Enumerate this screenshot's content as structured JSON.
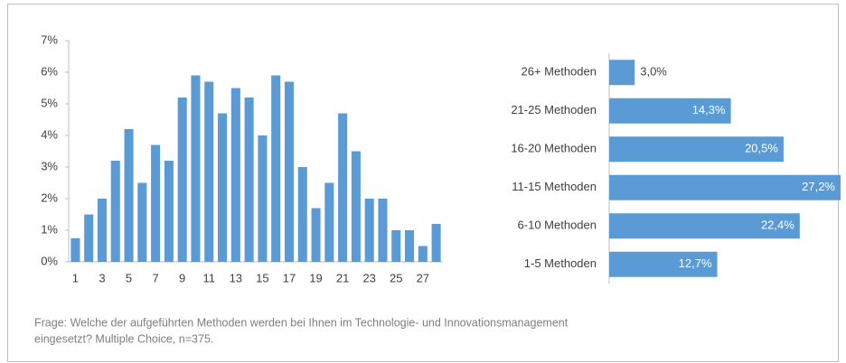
{
  "chart_data": [
    {
      "type": "bar",
      "categories": [
        "1",
        null,
        "3",
        null,
        "5",
        null,
        "7",
        null,
        "9",
        null,
        "11",
        null,
        "13",
        null,
        "15",
        null,
        "17",
        null,
        "19",
        null,
        "21",
        null,
        "23",
        null,
        "25",
        null,
        "27",
        null
      ],
      "values": [
        0.75,
        1.5,
        2.0,
        3.2,
        4.2,
        2.5,
        3.7,
        3.2,
        5.2,
        5.9,
        5.7,
        4.7,
        5.5,
        5.2,
        4.0,
        5.9,
        5.7,
        3.0,
        1.7,
        2.5,
        4.7,
        3.5,
        2.0,
        2.0,
        1.0,
        1.0,
        0.5,
        1.2
      ],
      "color": "#5b9bd5",
      "ylim": [
        0,
        7
      ],
      "yticks": [
        {
          "value": 0,
          "label": "0%"
        },
        {
          "value": 1,
          "label": "1%"
        },
        {
          "value": 2,
          "label": "2%"
        },
        {
          "value": 3,
          "label": "3%"
        },
        {
          "value": 4,
          "label": "4%"
        },
        {
          "value": 5,
          "label": "5%"
        },
        {
          "value": 6,
          "label": "6%"
        },
        {
          "value": 7,
          "label": "7%"
        }
      ]
    },
    {
      "type": "hbar",
      "categories": [
        "26+ Methoden",
        "21-25 Methoden",
        "16-20 Methoden",
        "11-15 Methoden",
        "6-10 Methoden",
        "1-5 Methoden"
      ],
      "values": [
        3.0,
        14.3,
        20.5,
        27.2,
        22.4,
        12.7
      ],
      "value_labels": [
        "3,0%",
        "14,3%",
        "20,5%",
        "27,2%",
        "22,4%",
        "12,7%"
      ],
      "color": "#5b9bd5",
      "xlim": [
        0,
        27.2
      ]
    }
  ],
  "note": [
    "Frage: Welche der aufgeführten Methoden werden bei Ihnen im Technologie- und Innovationsmanagement",
    "eingesetzt? Multiple Choice, n=375."
  ]
}
